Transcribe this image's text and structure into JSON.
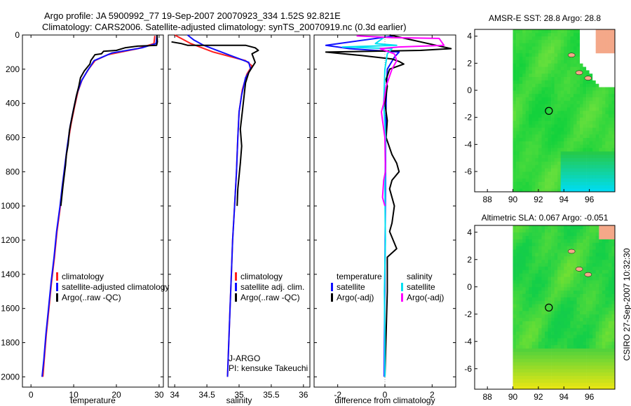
{
  "header": {
    "line1": "Argo profile: JA 5900992_77 19-Sep-2007 20070923_334 1.52S 92.821E",
    "line2": "Climatology: CARS2006. Satellite-adjusted climatology: synTS_20070919.nc (0.3d earlier)"
  },
  "side_label": "CSIRO 27-Sep-2007 10:32:30",
  "colors": {
    "climatology": "#ff2020",
    "satellite": "#1010ff",
    "argo": "#000000",
    "salinity_sat": "#00e0f0",
    "salinity_argo": "#ff00ff",
    "land": "#f4a889"
  },
  "chart_data": [
    {
      "type": "line",
      "id": "temperature",
      "xlabel": "temperature",
      "ylabel": "",
      "xlim": [
        -2,
        31
      ],
      "ylim": [
        0,
        2060
      ],
      "xticks": [
        0,
        10,
        20,
        30
      ],
      "yticks": [
        0,
        200,
        400,
        600,
        800,
        1000,
        1200,
        1400,
        1600,
        1800,
        2000
      ],
      "legend": [
        "climatology",
        "satellite-adjusted climatology",
        "Argo(..raw -QC)"
      ],
      "series": [
        {
          "name": "climatology",
          "color": "#ff2020",
          "points": [
            [
              29.0,
              5
            ],
            [
              28.8,
              50
            ],
            [
              25,
              80
            ],
            [
              18,
              115
            ],
            [
              15,
              150
            ],
            [
              13.5,
              200
            ],
            [
              12,
              260
            ],
            [
              11,
              330
            ],
            [
              10.2,
              420
            ],
            [
              9.4,
              520
            ],
            [
              8.6,
              640
            ],
            [
              8,
              760
            ],
            [
              7.4,
              880
            ],
            [
              6.9,
              1000
            ],
            [
              6.1,
              1150
            ],
            [
              5.5,
              1300
            ],
            [
              4.8,
              1450
            ],
            [
              4.2,
              1600
            ],
            [
              3.6,
              1750
            ],
            [
              3.1,
              1900
            ],
            [
              2.8,
              2000
            ]
          ]
        },
        {
          "name": "satellite-adjusted climatology",
          "color": "#1010ff",
          "points": [
            [
              29.5,
              0
            ],
            [
              29.3,
              50
            ],
            [
              26,
              75
            ],
            [
              19,
              105
            ],
            [
              14.8,
              150
            ],
            [
              13.2,
              210
            ],
            [
              11.8,
              270
            ],
            [
              10.8,
              340
            ],
            [
              10,
              430
            ],
            [
              9.2,
              530
            ],
            [
              8.5,
              650
            ],
            [
              7.9,
              770
            ],
            [
              7.3,
              890
            ],
            [
              6.8,
              1000
            ],
            [
              6.0,
              1150
            ],
            [
              5.4,
              1300
            ],
            [
              4.7,
              1450
            ],
            [
              4.1,
              1600
            ],
            [
              3.5,
              1750
            ],
            [
              3.0,
              1900
            ],
            [
              2.6,
              2000
            ]
          ]
        },
        {
          "name": "Argo(..raw -QC)",
          "color": "#000000",
          "points": [
            [
              29.5,
              0
            ],
            [
              29.6,
              40
            ],
            [
              29.4,
              60
            ],
            [
              25,
              65
            ],
            [
              22,
              75
            ],
            [
              20,
              90
            ],
            [
              17,
              95
            ],
            [
              16.5,
              110
            ],
            [
              15,
              115
            ],
            [
              14,
              150
            ],
            [
              13.8,
              170
            ],
            [
              12.5,
              210
            ],
            [
              11.6,
              250
            ],
            [
              11.2,
              300
            ],
            [
              10.6,
              360
            ],
            [
              10.1,
              420
            ],
            [
              9.6,
              480
            ],
            [
              9.0,
              560
            ],
            [
              8.7,
              640
            ],
            [
              8.3,
              700
            ],
            [
              8.1,
              760
            ],
            [
              7.8,
              820
            ],
            [
              7.5,
              880
            ],
            [
              7.0,
              1000
            ]
          ]
        }
      ]
    },
    {
      "type": "line",
      "id": "salinity",
      "xlabel": "salinity",
      "xlim": [
        33.9,
        36.1
      ],
      "ylim": [
        0,
        2060
      ],
      "xticks": [
        34,
        34.5,
        35,
        35.5,
        36
      ],
      "xticklabels": [
        "34",
        "34.5",
        "35",
        "35.5",
        "36"
      ],
      "legend": [
        "climatology",
        "satellite adj. clim.",
        "Argo(..raw -QC)"
      ],
      "annotation": [
        "J-ARGO",
        "PI: kensuke Takeuchi"
      ],
      "series": [
        {
          "name": "climatology",
          "color": "#ff2020",
          "points": [
            [
              34.0,
              0
            ],
            [
              34.1,
              20
            ],
            [
              34.25,
              50
            ],
            [
              34.6,
              100
            ],
            [
              35.1,
              150
            ],
            [
              35.2,
              180
            ],
            [
              35.12,
              230
            ],
            [
              35.05,
              320
            ],
            [
              35.0,
              450
            ],
            [
              34.98,
              600
            ],
            [
              34.96,
              800
            ],
            [
              34.93,
              1000
            ],
            [
              34.9,
              1200
            ],
            [
              34.88,
              1400
            ],
            [
              34.86,
              1600
            ],
            [
              34.84,
              1800
            ],
            [
              34.82,
              2000
            ]
          ]
        },
        {
          "name": "satellite adj. clim.",
          "color": "#1010ff",
          "points": [
            [
              34.2,
              0
            ],
            [
              34.3,
              30
            ],
            [
              34.45,
              60
            ],
            [
              34.8,
              110
            ],
            [
              35.15,
              160
            ],
            [
              35.18,
              200
            ],
            [
              35.1,
              250
            ],
            [
              35.04,
              350
            ],
            [
              35.0,
              450
            ],
            [
              34.98,
              600
            ],
            [
              34.96,
              800
            ],
            [
              34.93,
              1000
            ],
            [
              34.9,
              1200
            ],
            [
              34.88,
              1400
            ],
            [
              34.86,
              1600
            ],
            [
              34.84,
              1800
            ],
            [
              34.82,
              2000
            ]
          ]
        },
        {
          "name": "Argo(..raw -QC)",
          "color": "#000000",
          "points": [
            [
              33.95,
              40
            ],
            [
              34.1,
              50
            ],
            [
              34.2,
              60
            ],
            [
              35.1,
              60
            ],
            [
              35.25,
              75
            ],
            [
              35.3,
              90
            ],
            [
              35.2,
              110
            ],
            [
              35.25,
              160
            ],
            [
              35.15,
              220
            ],
            [
              35.1,
              280
            ],
            [
              35.08,
              350
            ],
            [
              35.05,
              450
            ],
            [
              35.02,
              550
            ],
            [
              35.04,
              650
            ],
            [
              35.02,
              750
            ],
            [
              34.98,
              900
            ],
            [
              34.97,
              1000
            ]
          ]
        }
      ]
    },
    {
      "type": "line",
      "id": "difference",
      "xlabel": "difference from climatology",
      "xlim": [
        -3,
        3
      ],
      "ylim": [
        0,
        2060
      ],
      "xticks": [
        -2,
        0,
        2
      ],
      "legend": [
        "temperature",
        "satellite",
        "Argo(-adj)",
        "salinity",
        "satellite",
        "Argo(-adj)"
      ],
      "series": [
        {
          "name": "temperature satellite",
          "color": "#1010ff",
          "points": [
            [
              0.4,
              5
            ],
            [
              -2.5,
              60
            ],
            [
              -1.5,
              80
            ],
            [
              0.6,
              100
            ],
            [
              0.4,
              130
            ],
            [
              0.1,
              200
            ],
            [
              0.05,
              400
            ],
            [
              0.03,
              700
            ],
            [
              0.02,
              1000
            ],
            [
              0.0,
              1400
            ],
            [
              -0.02,
              1800
            ],
            [
              -0.03,
              2000
            ]
          ]
        },
        {
          "name": "temperature Argo(-adj)",
          "color": "#000000",
          "points": [
            [
              0.2,
              0
            ],
            [
              2.8,
              80
            ],
            [
              1.5,
              90
            ],
            [
              -2.5,
              100
            ],
            [
              -1.0,
              120
            ],
            [
              0.3,
              140
            ],
            [
              0.6,
              155
            ],
            [
              0.8,
              170
            ],
            [
              0.2,
              200
            ],
            [
              0.05,
              260
            ],
            [
              0.1,
              300
            ],
            [
              0.0,
              400
            ],
            [
              0.1,
              500
            ],
            [
              0.05,
              600
            ],
            [
              0.3,
              700
            ],
            [
              0.5,
              750
            ],
            [
              0.6,
              800
            ],
            [
              0.3,
              850
            ],
            [
              0.2,
              900
            ],
            [
              0.4,
              1000
            ],
            [
              0.3,
              1100
            ],
            [
              0.2,
              1150
            ],
            [
              0.5,
              1250
            ],
            [
              0.1,
              1300
            ],
            [
              0.1,
              1500
            ],
            [
              0.0,
              2000
            ]
          ]
        },
        {
          "name": "salinity satellite",
          "color": "#00e0f0",
          "points": [
            [
              0.05,
              5
            ],
            [
              -0.4,
              50
            ],
            [
              0.5,
              60
            ],
            [
              -1.8,
              70
            ],
            [
              0.3,
              80
            ],
            [
              0.1,
              110
            ],
            [
              0.0,
              200
            ],
            [
              -0.05,
              400
            ],
            [
              0.03,
              600
            ],
            [
              0.0,
              900
            ],
            [
              0.02,
              1200
            ],
            [
              -0.02,
              1500
            ],
            [
              0.0,
              1800
            ],
            [
              0.0,
              2000
            ]
          ]
        },
        {
          "name": "salinity Argo(-adj)",
          "color": "#ff00ff",
          "points": [
            [
              -1.2,
              5
            ],
            [
              -0.5,
              10
            ],
            [
              0.3,
              15
            ],
            [
              2.3,
              20
            ],
            [
              2.5,
              60
            ],
            [
              0.6,
              70
            ],
            [
              -0.2,
              80
            ],
            [
              0.4,
              110
            ],
            [
              0.5,
              150
            ],
            [
              0.3,
              200
            ],
            [
              0.05,
              300
            ],
            [
              -0.05,
              400
            ],
            [
              -0.15,
              450
            ],
            [
              -0.1,
              500
            ],
            [
              0.0,
              600
            ],
            [
              0.02,
              800
            ],
            [
              -0.05,
              850
            ],
            [
              -0.1,
              950
            ],
            [
              0.0,
              1000
            ]
          ]
        }
      ]
    },
    {
      "type": "heatmap",
      "id": "sst_map",
      "title": "AMSR-E SST: 28.8 Argo: 28.8",
      "xlim": [
        87,
        98
      ],
      "ylim": [
        -7.5,
        4.5
      ],
      "xticks": [
        88,
        90,
        92,
        94,
        96
      ],
      "yticks": [
        -6,
        -4,
        -2,
        0,
        2,
        4
      ],
      "marker": [
        92.821,
        -1.52
      ]
    },
    {
      "type": "heatmap",
      "id": "sla_map",
      "title": "Altimetric SLA: 0.067 Argo: -0.051",
      "xlim": [
        87,
        98
      ],
      "ylim": [
        -7.5,
        4.5
      ],
      "xticks": [
        88,
        90,
        92,
        94,
        96
      ],
      "yticks": [
        -6,
        -4,
        -2,
        0,
        2,
        4
      ],
      "marker": [
        92.821,
        -1.52
      ]
    }
  ]
}
